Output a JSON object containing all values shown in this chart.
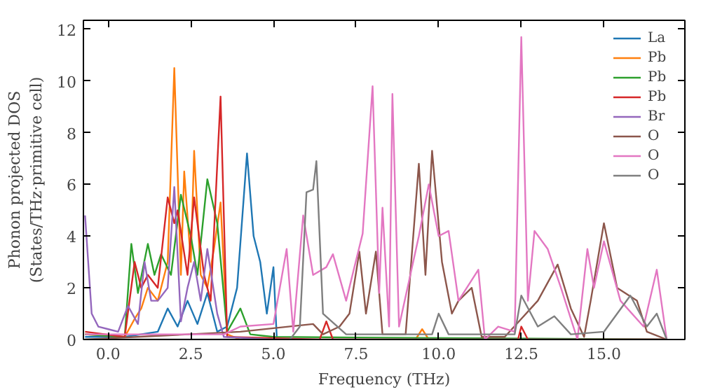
{
  "chart_data": {
    "type": "line",
    "xlabel": "Frequency (THz)",
    "ylabel": "Phonon projected DOS\n(States/THz·primitive cell)",
    "xlim": [
      -0.75,
      17.45
    ],
    "ylim": [
      0,
      12.35
    ],
    "xticks": [
      {
        "value": 0,
        "label": "0.0"
      },
      2.5,
      {
        "value": 5,
        "label": "5.0"
      },
      7.5,
      {
        "value": 10,
        "label": "10.0"
      },
      12.5,
      {
        "value": 15,
        "label": "15.0"
      }
    ],
    "yticks": [
      0,
      2,
      4,
      6,
      8,
      10,
      12
    ],
    "legend": "top right",
    "grid": false,
    "marker": "none",
    "line_style": "solid",
    "series": [
      {
        "name": "La",
        "color": "#1f77b4",
        "x": [
          -0.7,
          0.5,
          1.5,
          1.8,
          2.1,
          2.4,
          2.7,
          3.0,
          3.3,
          3.6,
          3.9,
          4.2,
          4.4,
          4.6,
          4.8,
          5.0,
          5.1
        ],
        "values": [
          0.1,
          0.1,
          0.3,
          1.2,
          0.5,
          1.5,
          0.6,
          1.8,
          0.3,
          0.5,
          2.0,
          7.2,
          4.0,
          3.0,
          1.0,
          2.8,
          0.1
        ]
      },
      {
        "name": "Pb",
        "color": "#ff7f0e",
        "x": [
          -0.7,
          0.5,
          0.8,
          1.0,
          1.2,
          1.5,
          1.8,
          2.0,
          2.2,
          2.3,
          2.5,
          2.6,
          2.8,
          3.0,
          3.2,
          3.4,
          3.6,
          4.0,
          9.3,
          9.5,
          9.7,
          16.9
        ],
        "values": [
          0.2,
          0.1,
          0.8,
          1.2,
          2.0,
          1.5,
          3.0,
          10.5,
          2.5,
          6.5,
          3.0,
          7.3,
          2.5,
          2.0,
          3.5,
          5.3,
          0.2,
          0.0,
          0.0,
          0.4,
          0.0,
          0.0
        ]
      },
      {
        "name": "Pb",
        "color": "#2ca02c",
        "x": [
          -0.7,
          0.5,
          0.7,
          0.9,
          1.2,
          1.4,
          1.6,
          1.9,
          2.2,
          2.5,
          2.7,
          3.0,
          3.3,
          3.6,
          4.0,
          4.3,
          5.0,
          16.9
        ],
        "values": [
          0.2,
          0.1,
          3.7,
          1.8,
          3.7,
          2.5,
          3.3,
          2.5,
          5.6,
          4.0,
          2.5,
          6.2,
          4.5,
          0.3,
          1.2,
          0.2,
          0.1,
          0.0
        ]
      },
      {
        "name": "Pb",
        "color": "#d62728",
        "x": [
          -0.7,
          0.5,
          0.8,
          1.0,
          1.2,
          1.5,
          1.8,
          2.0,
          2.1,
          2.4,
          2.6,
          2.9,
          3.1,
          3.4,
          3.6,
          6.4,
          6.6,
          6.8,
          12.4,
          12.5,
          12.7,
          16.9
        ],
        "values": [
          0.3,
          0.1,
          3.0,
          2.0,
          2.5,
          2.0,
          5.5,
          4.5,
          5.0,
          2.5,
          5.5,
          2.5,
          1.5,
          9.4,
          0.1,
          0.0,
          0.7,
          0.0,
          0.0,
          0.5,
          0.0,
          0.0
        ]
      },
      {
        "name": "Br",
        "color": "#9467bd",
        "x": [
          -0.7,
          -0.5,
          -0.3,
          0.0,
          0.3,
          0.6,
          0.9,
          1.1,
          1.3,
          1.5,
          1.8,
          2.0,
          2.2,
          2.4,
          2.6,
          2.8,
          3.0,
          3.3,
          3.5,
          5.0,
          16.9
        ],
        "values": [
          4.8,
          1.0,
          0.5,
          0.4,
          0.3,
          1.3,
          0.6,
          3.0,
          1.5,
          1.5,
          2.0,
          5.9,
          0.7,
          2.0,
          3.0,
          1.5,
          3.5,
          1.0,
          0.1,
          0.0,
          0.0
        ]
      },
      {
        "name": "O",
        "color": "#8c564b",
        "x": [
          -0.7,
          4.0,
          6.2,
          6.5,
          7.0,
          7.3,
          7.6,
          7.8,
          8.1,
          8.3,
          9.0,
          9.4,
          9.6,
          9.8,
          10.1,
          10.4,
          10.6,
          11.0,
          11.3,
          12.0,
          12.5,
          13.0,
          13.6,
          14.0,
          14.4,
          14.6,
          15.0,
          15.4,
          16.0,
          16.3,
          16.9
        ],
        "values": [
          0.0,
          0.3,
          0.6,
          0.2,
          0.5,
          1.0,
          3.4,
          1.0,
          3.4,
          0.2,
          0.2,
          6.8,
          2.5,
          7.3,
          3.0,
          1.0,
          1.5,
          2.0,
          0.1,
          0.1,
          0.8,
          1.5,
          2.9,
          1.2,
          0.1,
          1.5,
          4.5,
          2.0,
          1.5,
          0.3,
          0.0
        ]
      },
      {
        "name": "O",
        "color": "#e377c2",
        "x": [
          -0.7,
          3.5,
          4.0,
          5.0,
          5.4,
          5.6,
          5.9,
          6.2,
          6.6,
          6.8,
          7.2,
          7.7,
          8.0,
          8.2,
          8.3,
          8.5,
          8.6,
          8.8,
          9.4,
          9.7,
          10.0,
          10.3,
          10.6,
          11.2,
          11.4,
          11.8,
          12.3,
          12.5,
          12.7,
          12.9,
          13.3,
          13.7,
          14.2,
          14.5,
          14.7,
          15.0,
          15.5,
          16.2,
          16.6,
          16.9
        ],
        "values": [
          0.2,
          0.2,
          0.5,
          0.6,
          3.5,
          0.3,
          4.8,
          2.5,
          2.8,
          3.3,
          1.5,
          4.1,
          9.8,
          1.8,
          5.1,
          0.5,
          9.5,
          0.5,
          4.0,
          6.0,
          4.0,
          4.2,
          1.5,
          2.7,
          0.0,
          0.5,
          0.3,
          11.7,
          1.5,
          4.2,
          3.5,
          2.0,
          0.0,
          3.5,
          2.0,
          3.8,
          1.5,
          0.5,
          2.7,
          0.0
        ]
      },
      {
        "name": "O",
        "color": "#7f7f7f",
        "x": [
          -0.7,
          5.5,
          5.8,
          6.0,
          6.2,
          6.3,
          6.5,
          7.2,
          9.8,
          10.0,
          10.3,
          12.3,
          12.5,
          13.0,
          13.5,
          14.0,
          15.0,
          15.8,
          16.3,
          16.6,
          16.9
        ],
        "values": [
          0.0,
          0.0,
          0.5,
          5.7,
          5.8,
          6.9,
          1.0,
          0.2,
          0.2,
          1.0,
          0.2,
          0.2,
          1.7,
          0.5,
          0.9,
          0.2,
          0.3,
          1.7,
          0.5,
          1.0,
          0.0
        ]
      }
    ]
  }
}
